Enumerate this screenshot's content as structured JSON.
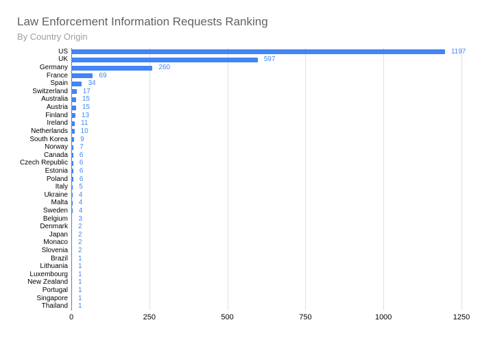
{
  "title": "Law Enforcement Information Requests Ranking",
  "subtitle": "By Country Origin",
  "colors": {
    "bar": "#4285f4",
    "value_label": "#4285f4",
    "title_text": "#616161",
    "subtitle_text": "#9aa0a6",
    "gridline": "#e0e0e0",
    "axis_baseline": "#757575",
    "axis_label_text": "#000000"
  },
  "chart_data": {
    "type": "bar",
    "orientation": "horizontal",
    "title": "Law Enforcement Information Requests Ranking",
    "subtitle": "By Country Origin",
    "categories": [
      "US",
      "UK",
      "Germany",
      "France",
      "Spain",
      "Switzerland",
      "Australia",
      "Austria",
      "Finland",
      "Ireland",
      "Netherlands",
      "South Korea",
      "Norway",
      "Canada",
      "Czech Republic",
      "Estonia",
      "Poland",
      "Italy",
      "Ukraine",
      "Malta",
      "Sweden",
      "Belgium",
      "Denmark",
      "Japan",
      "Monaco",
      "Slovenia",
      "Brazil",
      "Lithuania",
      "Luxembourg",
      "New Zealand",
      "Portugal",
      "Singapore",
      "Thailand"
    ],
    "values": [
      1197,
      597,
      260,
      69,
      34,
      17,
      15,
      15,
      13,
      11,
      10,
      9,
      7,
      6,
      6,
      6,
      6,
      5,
      4,
      4,
      4,
      3,
      2,
      2,
      2,
      2,
      1,
      1,
      1,
      1,
      1,
      1,
      1
    ],
    "xlabel": "",
    "ylabel": "",
    "xlim": [
      0,
      1250
    ],
    "x_ticks": [
      0,
      250,
      500,
      750,
      1000,
      1250
    ],
    "grid": true,
    "data_labels": true,
    "legend_position": "none"
  }
}
